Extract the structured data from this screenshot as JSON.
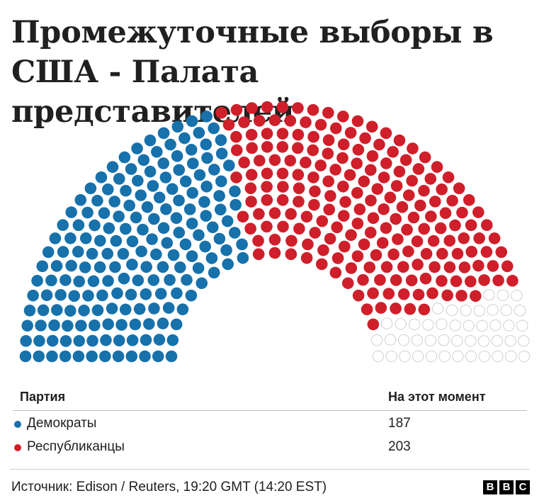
{
  "title": "Промежуточные выборы в США - Палата представителей",
  "chart_data": {
    "type": "hemicycle",
    "total_seats": 435,
    "series": [
      {
        "name": "Демократы",
        "values": [
          187
        ],
        "color": "#1771ab"
      },
      {
        "name": "Республиканцы",
        "values": [
          203
        ],
        "color": "#cf1f2a"
      },
      {
        "values": [
          45
        ],
        "color": "#ffffff",
        "status": "not yet declared"
      }
    ]
  },
  "legend": {
    "col_party": "Партия",
    "col_now": "На этот момент",
    "rows": [
      {
        "name": "Демократы",
        "value": "187",
        "color": "#1771ab"
      },
      {
        "name": "Республиканцы",
        "value": "203",
        "color": "#cf1f2a"
      }
    ]
  },
  "footer": {
    "source": "Источник: Edison / Reuters, 19:20 GMT (14:20 EST)",
    "logo": [
      "B",
      "B",
      "C"
    ]
  }
}
